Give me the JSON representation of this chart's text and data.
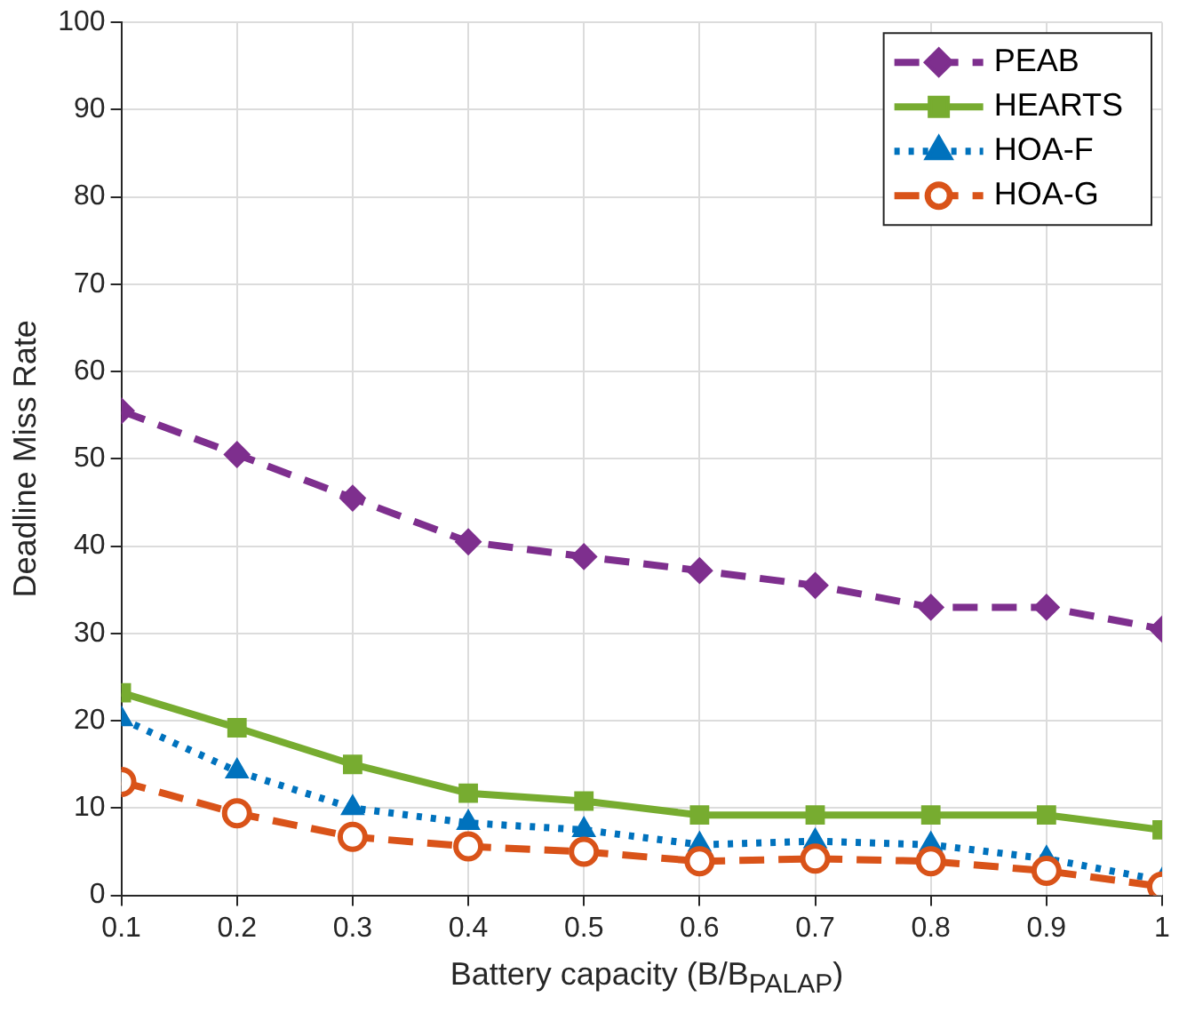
{
  "chart_data": {
    "type": "line",
    "xlabel": "Battery capacity (B/B$_{PALAP}$)",
    "ylabel": "Deadline Miss Rate",
    "x": [
      0.1,
      0.2,
      0.3,
      0.4,
      0.5,
      0.6,
      0.7,
      0.8,
      0.9,
      1
    ],
    "xlim": [
      0.1,
      1
    ],
    "xticks": [
      0.1,
      0.2,
      0.3,
      0.4,
      0.5,
      0.6,
      0.7,
      0.8,
      0.9,
      1
    ],
    "ylim": [
      0,
      100
    ],
    "yticks": [
      0,
      10,
      20,
      30,
      40,
      50,
      60,
      70,
      80,
      90,
      100
    ],
    "grid": true,
    "legend": "top right",
    "series": [
      {
        "name": "PEAB",
        "color": "#7e2f8e",
        "marker": "diamond",
        "line_style": "dashed",
        "values": [
          55.5,
          50.5,
          45.5,
          40.5,
          38.8,
          37.2,
          35.5,
          33,
          33,
          30.5
        ]
      },
      {
        "name": "HEARTS",
        "color": "#77ac30",
        "marker": "square",
        "line_style": "solid",
        "values": [
          23.2,
          19.2,
          15,
          11.7,
          10.8,
          9.2,
          9.2,
          9.2,
          9.2,
          7.5
        ]
      },
      {
        "name": "HOA-F",
        "color": "#0072bd",
        "marker": "triangle",
        "line_style": "dotted",
        "values": [
          20.2,
          14.2,
          10,
          8.3,
          7.5,
          5.8,
          6.2,
          5.8,
          4.2,
          1.7
        ]
      },
      {
        "name": "HOA-G",
        "color": "#d95319",
        "marker": "circle",
        "line_style": "dashed",
        "values": [
          13,
          9.4,
          6.7,
          5.6,
          5,
          3.9,
          4.2,
          3.9,
          2.8,
          1
        ]
      }
    ]
  }
}
